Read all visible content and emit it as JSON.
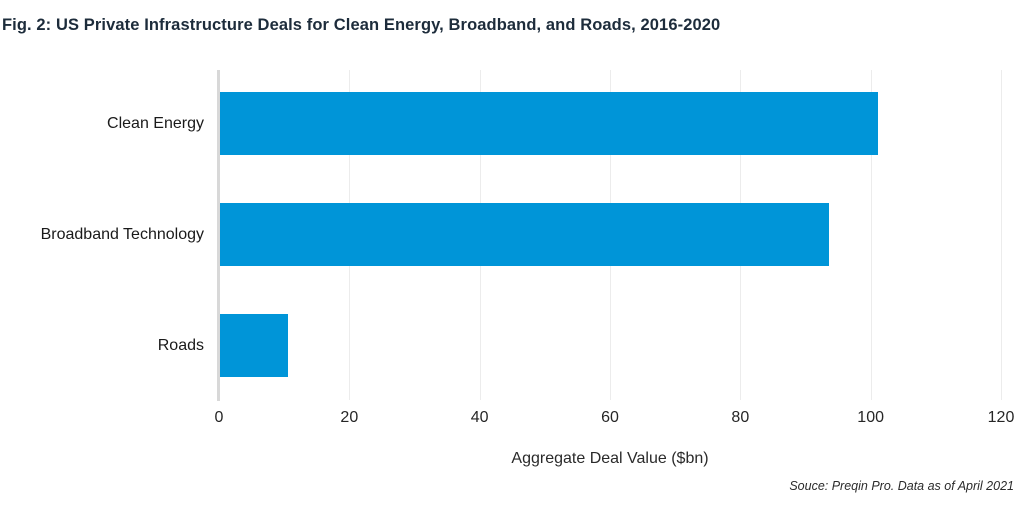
{
  "title": "Fig. 2: US Private Infrastructure Deals for Clean Energy, Broadband, and Roads, 2016-2020",
  "source_note": "Souce: Preqin Pro. Data as of April 2021",
  "colors": {
    "bar": "#0095d8",
    "title_text": "#1d2c3b",
    "axis_line": "#d8d8d8",
    "gridline": "#ececec",
    "label_text": "#1a1a1a"
  },
  "chart_data": {
    "type": "bar",
    "orientation": "horizontal",
    "title": "Fig. 2: US Private Infrastructure Deals for Clean Energy, Broadband, and Roads, 2016-2020",
    "categories": [
      "Clean Energy",
      "Broadband Technology",
      "Roads"
    ],
    "values": [
      101,
      93.5,
      10.5
    ],
    "xlabel": "Aggregate Deal Value ($bn)",
    "ylabel": "",
    "xlim": [
      0,
      120
    ],
    "xticks": [
      0,
      20,
      40,
      60,
      80,
      100,
      120
    ],
    "grid": "vertical-light",
    "legend": "none",
    "bar_color": "#0095d8",
    "source": "Souce: Preqin Pro. Data as of April 2021"
  }
}
